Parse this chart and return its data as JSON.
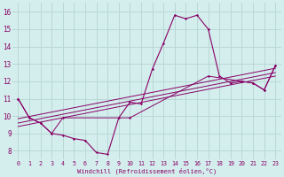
{
  "xlabel": "Windchill (Refroidissement éolien,°C)",
  "background_color": "#d4eeed",
  "grid_color": "#b8d8d6",
  "line_color": "#880066",
  "xlim": [
    -0.5,
    23.5
  ],
  "ylim": [
    7.5,
    16.5
  ],
  "xticks": [
    0,
    1,
    2,
    3,
    4,
    5,
    6,
    7,
    8,
    9,
    10,
    11,
    12,
    13,
    14,
    15,
    16,
    17,
    18,
    19,
    20,
    21,
    22,
    23
  ],
  "yticks": [
    8,
    9,
    10,
    11,
    12,
    13,
    14,
    15,
    16
  ],
  "main_line": {
    "x": [
      0,
      1,
      2,
      3,
      4,
      5,
      6,
      7,
      8,
      9,
      10,
      11,
      12,
      13,
      14,
      15,
      16,
      17,
      18,
      19,
      20,
      21,
      22,
      23
    ],
    "y": [
      11.0,
      9.9,
      9.6,
      9.0,
      8.9,
      8.7,
      8.6,
      7.9,
      7.8,
      9.9,
      10.8,
      10.7,
      12.7,
      14.2,
      15.8,
      15.6,
      15.8,
      15.0,
      12.3,
      11.9,
      12.0,
      11.9,
      11.5,
      12.9
    ]
  },
  "straight_lines": [
    {
      "x": [
        0,
        23
      ],
      "y": [
        9.4,
        12.3
      ]
    },
    {
      "x": [
        0,
        23
      ],
      "y": [
        9.6,
        12.5
      ]
    },
    {
      "x": [
        0,
        23
      ],
      "y": [
        9.85,
        12.75
      ]
    }
  ],
  "segment_line": {
    "x": [
      0,
      1,
      2,
      3,
      4,
      10,
      17,
      20,
      21,
      22,
      23
    ],
    "y": [
      11.0,
      9.9,
      9.6,
      9.0,
      9.9,
      9.9,
      12.3,
      12.0,
      11.9,
      11.5,
      12.9
    ]
  }
}
